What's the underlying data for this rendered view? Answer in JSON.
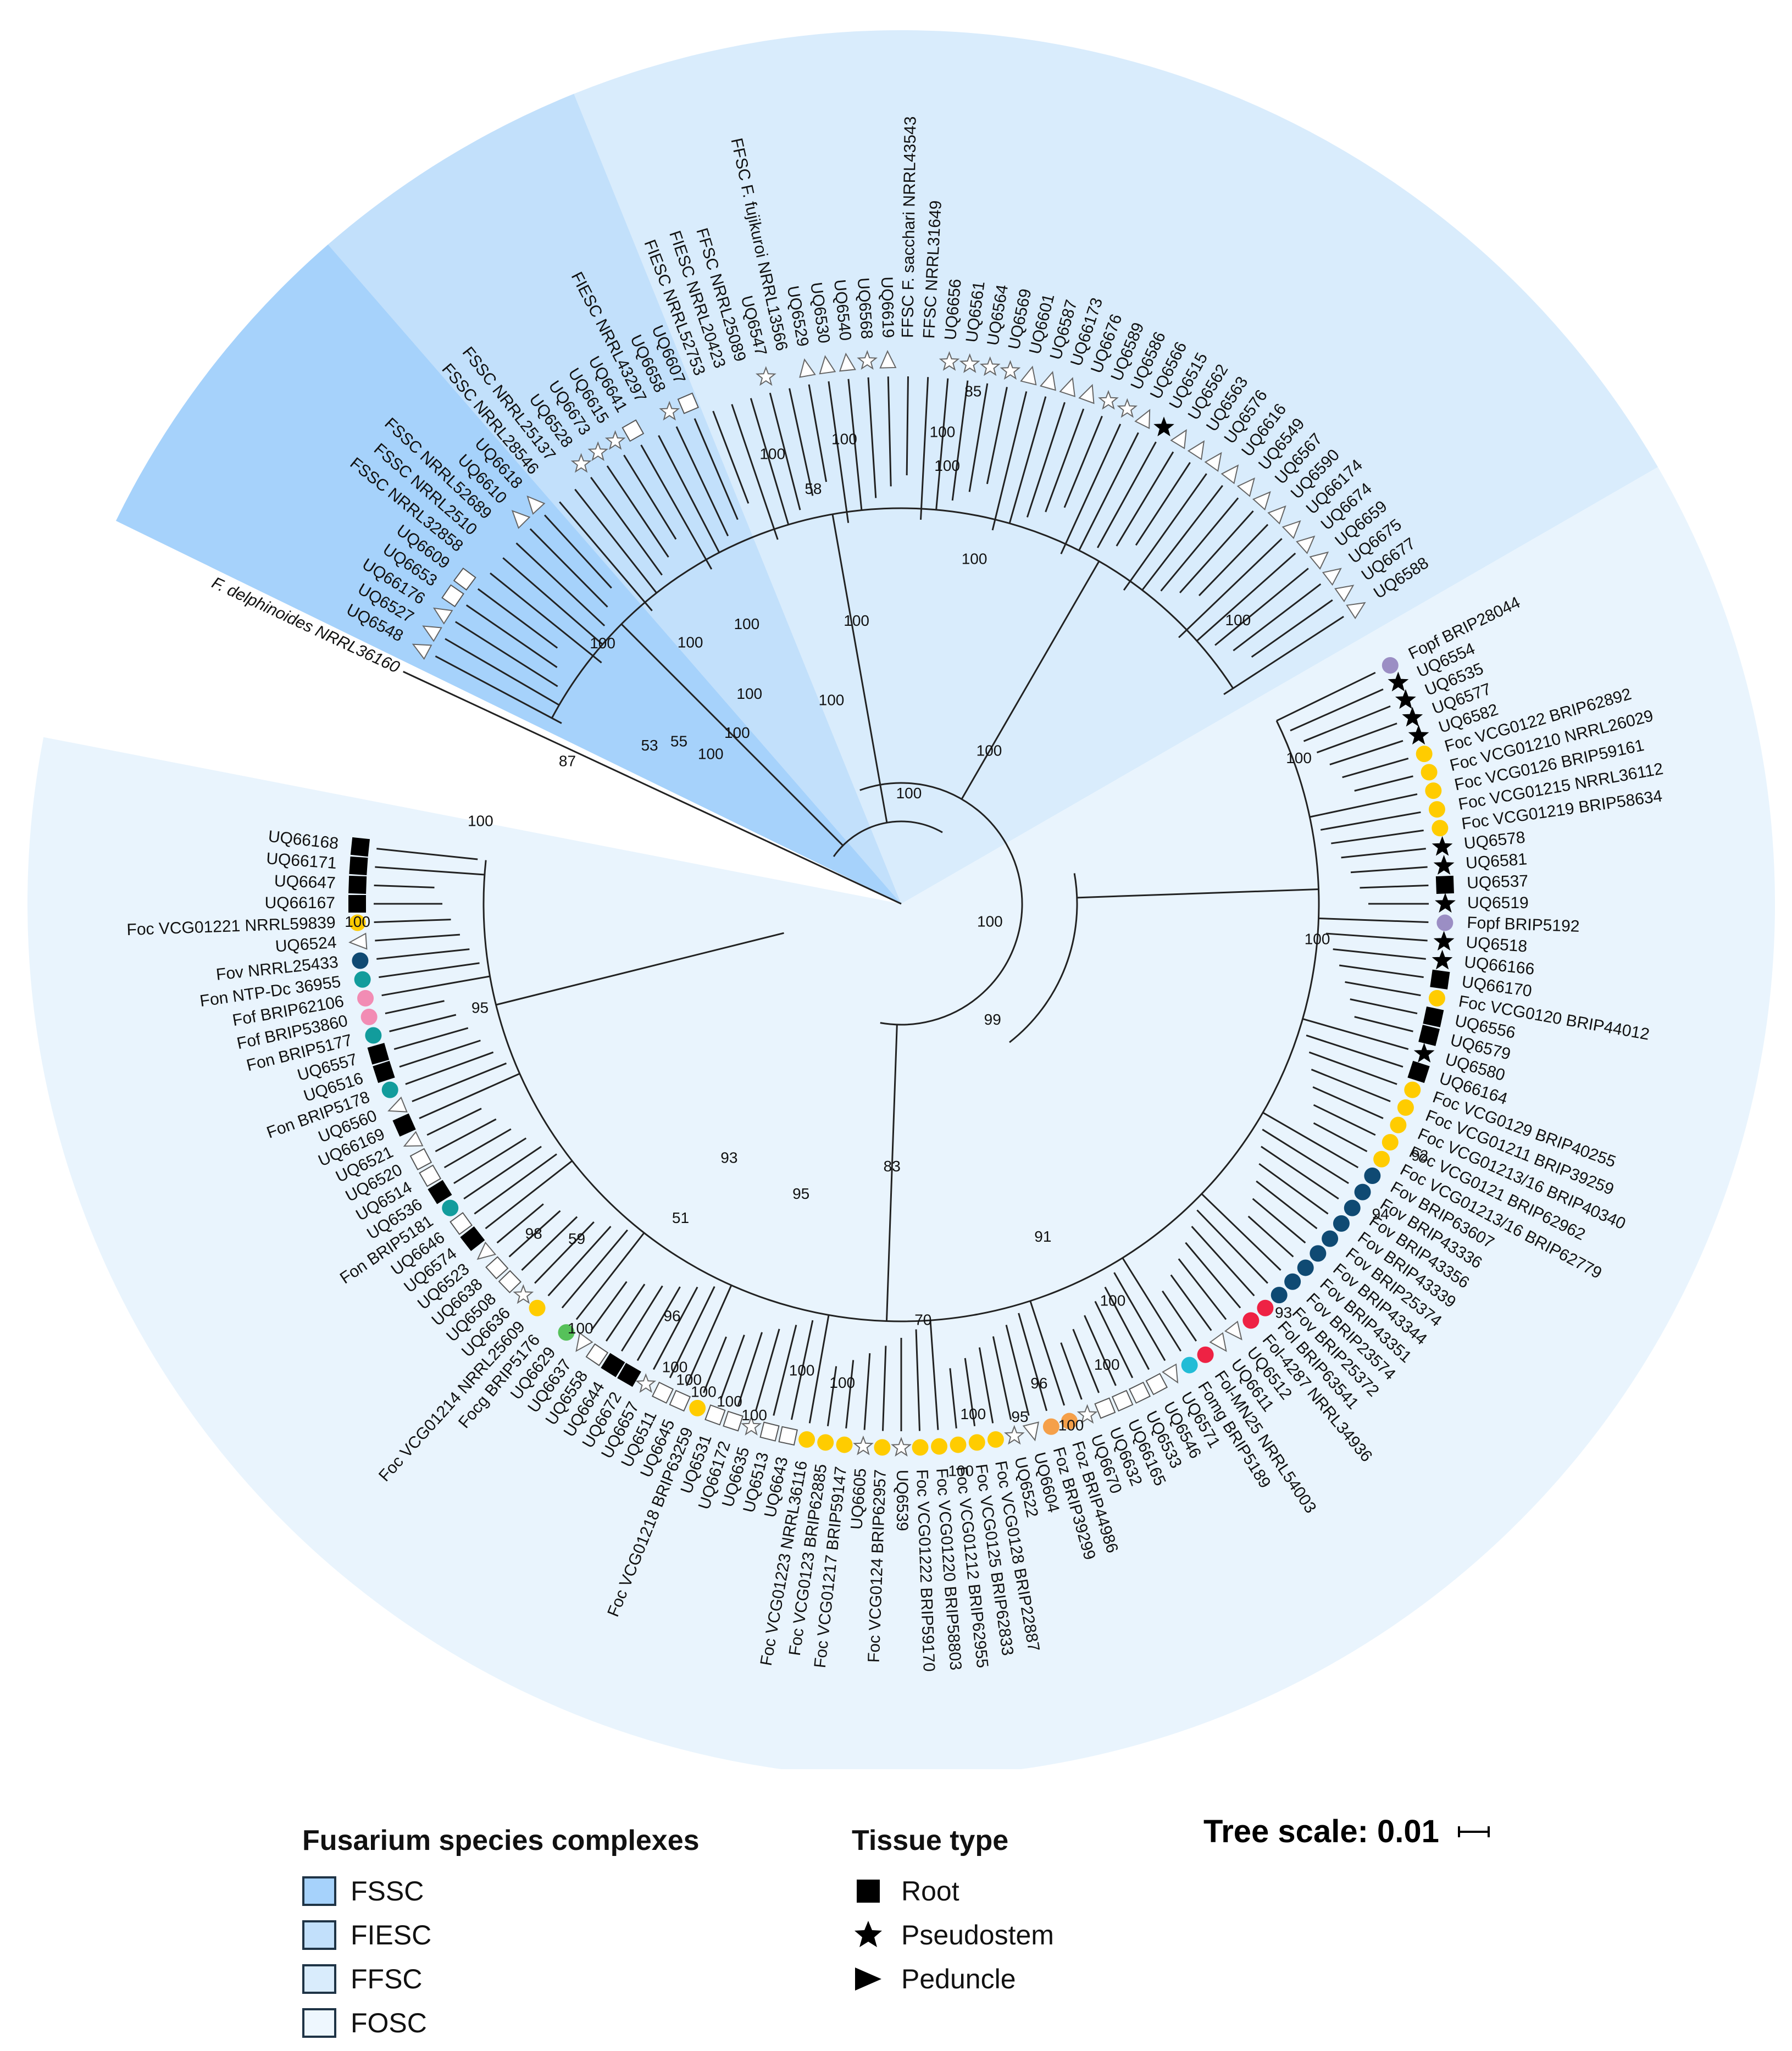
{
  "colors": {
    "FSSC": "#a6d2fb",
    "FIESC": "#c2e0fb",
    "FFSC": "#d9ecfc",
    "FOSC": "#e9f4fd",
    "Foc": "#ffcc00",
    "Fov": "#0f4a73",
    "Fon": "#129c9c",
    "Fof": "#f28cb4",
    "Fopf": "#9b8ec4",
    "Fol": "#ee2244",
    "Foz": "#f5a04a",
    "Focg": "#56c15a",
    "Fomg": "#22bcd6"
  },
  "chart_data": {
    "type": "circular phylogenetic tree",
    "outgroup": "F. delphinoides NRRL36160",
    "tips": [
      {
        "name": "UQ6548",
        "mark": "triangle"
      },
      {
        "name": "UQ6527",
        "mark": "triangle"
      },
      {
        "name": "UQ66176",
        "mark": "triangle"
      },
      {
        "name": "UQ6653",
        "mark": "square"
      },
      {
        "name": "UQ6609",
        "mark": "square"
      },
      {
        "name": "FSSC NRRL32858",
        "mark": ""
      },
      {
        "name": "FSSC NRRL2510",
        "mark": ""
      },
      {
        "name": "FSSC NRRL52689",
        "mark": ""
      },
      {
        "name": "UQ6610",
        "mark": "triangle"
      },
      {
        "name": "UQ6618",
        "mark": "triangle"
      },
      {
        "name": "FSSC NRRL28546",
        "mark": ""
      },
      {
        "name": "FSSC NRRL25137",
        "mark": ""
      },
      {
        "name": "UQ6528",
        "mark": "star"
      },
      {
        "name": "UQ6673",
        "mark": "star"
      },
      {
        "name": "UQ6615",
        "mark": "star"
      },
      {
        "name": "UQ6641",
        "mark": "square"
      },
      {
        "name": "FIESC NRRL43297",
        "mark": ""
      },
      {
        "name": "UQ6658",
        "mark": "star"
      },
      {
        "name": "UQ6607",
        "mark": "square"
      },
      {
        "name": "FIESC NRRL52753",
        "mark": ""
      },
      {
        "name": "FIESC NRRL20423",
        "mark": ""
      },
      {
        "name": "FFSC NRRL25089",
        "mark": ""
      },
      {
        "name": "UQ6547",
        "mark": "star"
      },
      {
        "name": "FFSC F. fujikuroi NRRL13566",
        "mark": ""
      },
      {
        "name": "UQ6529",
        "mark": "triangle"
      },
      {
        "name": "UQ6530",
        "mark": "triangle"
      },
      {
        "name": "UQ6540",
        "mark": "triangle"
      },
      {
        "name": "UQ6568",
        "mark": "star"
      },
      {
        "name": "UQ6619",
        "mark": "triangle"
      },
      {
        "name": "FFSC F. sacchari NRRL43543",
        "mark": ""
      },
      {
        "name": "FFSC NRRL31649",
        "mark": ""
      },
      {
        "name": "UQ6656",
        "mark": "star"
      },
      {
        "name": "UQ6561",
        "mark": "star"
      },
      {
        "name": "UQ6564",
        "mark": "star"
      },
      {
        "name": "UQ6569",
        "mark": "star"
      },
      {
        "name": "UQ6601",
        "mark": "triangle"
      },
      {
        "name": "UQ6587",
        "mark": "triangle"
      },
      {
        "name": "UQ66173",
        "mark": "triangle"
      },
      {
        "name": "UQ6676",
        "mark": "triangle"
      },
      {
        "name": "UQ6589",
        "mark": "star"
      },
      {
        "name": "UQ6586",
        "mark": "star"
      },
      {
        "name": "UQ6566",
        "mark": "triangle"
      },
      {
        "name": "UQ6515",
        "mark": "star_filled"
      },
      {
        "name": "UQ6562",
        "mark": "triangle"
      },
      {
        "name": "UQ6563",
        "mark": "triangle"
      },
      {
        "name": "UQ6576",
        "mark": "triangle"
      },
      {
        "name": "UQ6616",
        "mark": "triangle"
      },
      {
        "name": "UQ6549",
        "mark": "triangle"
      },
      {
        "name": "UQ6567",
        "mark": "triangle"
      },
      {
        "name": "UQ6590",
        "mark": "triangle"
      },
      {
        "name": "UQ66174",
        "mark": "triangle"
      },
      {
        "name": "UQ6674",
        "mark": "triangle"
      },
      {
        "name": "UQ6659",
        "mark": "triangle"
      },
      {
        "name": "UQ6675",
        "mark": "triangle"
      },
      {
        "name": "UQ6677",
        "mark": "triangle"
      },
      {
        "name": "UQ6588",
        "mark": "triangle"
      },
      {
        "name": "Fopf BRIP28044",
        "mark": "Fopf"
      },
      {
        "name": "UQ6554",
        "mark": "star_filled"
      },
      {
        "name": "UQ6535",
        "mark": "star_filled"
      },
      {
        "name": "UQ6577",
        "mark": "star_filled"
      },
      {
        "name": "UQ6582",
        "mark": "star_filled"
      },
      {
        "name": "Foc VCG0122 BRIP62892",
        "mark": "Foc"
      },
      {
        "name": "Foc VCG01210 NRRL26029",
        "mark": "Foc"
      },
      {
        "name": "Foc VCG0126 BRIP59161",
        "mark": "Foc"
      },
      {
        "name": "Foc VCG01215 NRRL36112",
        "mark": "Foc"
      },
      {
        "name": "Foc VCG01219 BRIP58634",
        "mark": "Foc"
      },
      {
        "name": "UQ6578",
        "mark": "star_filled"
      },
      {
        "name": "UQ6581",
        "mark": "star_filled"
      },
      {
        "name": "UQ6537",
        "mark": "square_filled"
      },
      {
        "name": "UQ6519",
        "mark": "star_filled"
      },
      {
        "name": "Fopf BRIP5192",
        "mark": "Fopf"
      },
      {
        "name": "UQ6518",
        "mark": "star_filled"
      },
      {
        "name": "UQ66166",
        "mark": "star_filled"
      },
      {
        "name": "UQ66170",
        "mark": "square_filled"
      },
      {
        "name": "Foc VCG0120 BRIP44012",
        "mark": "Foc"
      },
      {
        "name": "UQ6556",
        "mark": "square_filled"
      },
      {
        "name": "UQ6579",
        "mark": "square_filled"
      },
      {
        "name": "UQ6580",
        "mark": "star_filled"
      },
      {
        "name": "UQ66164",
        "mark": "square_filled"
      },
      {
        "name": "Foc VCG0129 BRIP40255",
        "mark": "Foc"
      },
      {
        "name": "Foc VCG01211 BRIP39259",
        "mark": "Foc"
      },
      {
        "name": "Foc VCG01213/16 BRIP40340",
        "mark": "Foc"
      },
      {
        "name": "Foc VCG0121 BRIP62962",
        "mark": "Foc"
      },
      {
        "name": "Foc VCG01213/16 BRIP62779",
        "mark": "Foc"
      },
      {
        "name": "Fov BRIP63607",
        "mark": "Fov"
      },
      {
        "name": "Fov BRIP43336",
        "mark": "Fov"
      },
      {
        "name": "Fov BRIP43356",
        "mark": "Fov"
      },
      {
        "name": "Fov BRIP43339",
        "mark": "Fov"
      },
      {
        "name": "Fov BRIP25374",
        "mark": "Fov"
      },
      {
        "name": "Fov BRIP43344",
        "mark": "Fov"
      },
      {
        "name": "Fov BRIP43351",
        "mark": "Fov"
      },
      {
        "name": "Fov BRIP23574",
        "mark": "Fov"
      },
      {
        "name": "Fov BRIP25372",
        "mark": "Fov"
      },
      {
        "name": "Fol BRIP63541",
        "mark": "Fol"
      },
      {
        "name": "Fol-4287 NRRL34936",
        "mark": "Fol"
      },
      {
        "name": "UQ6512",
        "mark": "triangle"
      },
      {
        "name": "UQ6611",
        "mark": "triangle"
      },
      {
        "name": "Fol-MN25 NRRL54003",
        "mark": "Fol"
      },
      {
        "name": "Fomg BRIP5189",
        "mark": "Fomg"
      },
      {
        "name": "UQ6571",
        "mark": "triangle"
      },
      {
        "name": "UQ6546",
        "mark": "square"
      },
      {
        "name": "UQ6533",
        "mark": "square"
      },
      {
        "name": "UQ66165",
        "mark": "square"
      },
      {
        "name": "UQ6632",
        "mark": "square"
      },
      {
        "name": "UQ6670",
        "mark": "star"
      },
      {
        "name": "Foz BRIP44986",
        "mark": "Foz"
      },
      {
        "name": "Foz BRIP39299",
        "mark": "Foz"
      },
      {
        "name": "UQ6604",
        "mark": "triangle"
      },
      {
        "name": "UQ6522",
        "mark": "star"
      },
      {
        "name": "Foc VCG0128 BRIP22887",
        "mark": "Foc"
      },
      {
        "name": "Foc VCG0125 BRIP62833",
        "mark": "Foc"
      },
      {
        "name": "Foc VCG01212 BRIP62955",
        "mark": "Foc"
      },
      {
        "name": "Foc VCG01220 BRIP58803",
        "mark": "Foc"
      },
      {
        "name": "Foc VCG01222 BRIP59170",
        "mark": "Foc"
      },
      {
        "name": "UQ6539",
        "mark": "star"
      },
      {
        "name": "Foc VCG0124 BRIP62957",
        "mark": "Foc"
      },
      {
        "name": "UQ6605",
        "mark": "star"
      },
      {
        "name": "Foc VCG01217 BRIP59147",
        "mark": "Foc"
      },
      {
        "name": "Foc VCG0123 BRIP62885",
        "mark": "Foc"
      },
      {
        "name": "Foc VCG01223 NRRL36116",
        "mark": "Foc"
      },
      {
        "name": "UQ6643",
        "mark": "square"
      },
      {
        "name": "UQ6513",
        "mark": "square"
      },
      {
        "name": "UQ6635",
        "mark": "star"
      },
      {
        "name": "UQ66172",
        "mark": "square"
      },
      {
        "name": "UQ6531",
        "mark": "square"
      },
      {
        "name": "Foc VCG01218 BRIP63259",
        "mark": "Foc"
      },
      {
        "name": "UQ6645",
        "mark": "square"
      },
      {
        "name": "UQ6511",
        "mark": "square"
      },
      {
        "name": "UQ6657",
        "mark": "star"
      },
      {
        "name": "UQ6672",
        "mark": "square_filled"
      },
      {
        "name": "UQ6644",
        "mark": "square_filled"
      },
      {
        "name": "UQ6558",
        "mark": "square"
      },
      {
        "name": "UQ6637",
        "mark": "triangle"
      },
      {
        "name": "UQ6629",
        "mark": "Focg"
      },
      {
        "name": "Focg BRIP5176",
        "mark": ""
      },
      {
        "name": "Foc VCG01214 NRRL25609",
        "mark": "Foc"
      },
      {
        "name": "UQ6636",
        "mark": "star"
      },
      {
        "name": "UQ6508",
        "mark": "square"
      },
      {
        "name": "UQ6638",
        "mark": "square"
      },
      {
        "name": "UQ6523",
        "mark": "triangle"
      },
      {
        "name": "UQ6574",
        "mark": "square_filled"
      },
      {
        "name": "UQ6646",
        "mark": "square"
      },
      {
        "name": "Fon BRIP5181",
        "mark": "Fon"
      },
      {
        "name": "UQ6536",
        "mark": "square_filled"
      },
      {
        "name": "UQ6514",
        "mark": "square"
      },
      {
        "name": "UQ6520",
        "mark": "square"
      },
      {
        "name": "UQ6521",
        "mark": "triangle"
      },
      {
        "name": "UQ66169",
        "mark": "square_filled"
      },
      {
        "name": "UQ6560",
        "mark": "triangle"
      },
      {
        "name": "Fon BRIP5178",
        "mark": "Fon"
      },
      {
        "name": "UQ6516",
        "mark": "square_filled"
      },
      {
        "name": "UQ6557",
        "mark": "square_filled"
      },
      {
        "name": "Fon BRIP5177",
        "mark": "Fon"
      },
      {
        "name": "Fof BRIP53860",
        "mark": "Fof"
      },
      {
        "name": "Fof BRIP62106",
        "mark": "Fof"
      },
      {
        "name": "Fon NTP-Dc 36955",
        "mark": "Fon"
      },
      {
        "name": "Fov NRRL25433",
        "mark": "Fov"
      },
      {
        "name": "UQ6524",
        "mark": "triangle"
      },
      {
        "name": "Foc VCG01221 NRRL59839",
        "mark": "Foc"
      },
      {
        "name": "UQ66167",
        "mark": "square_filled"
      },
      {
        "name": "UQ6647",
        "mark": "square_filled"
      },
      {
        "name": "UQ66171",
        "mark": "square_filled"
      },
      {
        "name": "UQ66168",
        "mark": "square_filled"
      }
    ],
    "bootstrap_labels": [
      {
        "value": "100",
        "a": 191,
        "r": 780
      },
      {
        "value": "87",
        "a": 203,
        "r": 660
      },
      {
        "value": "53",
        "a": 212,
        "r": 540
      },
      {
        "value": "55",
        "a": 216,
        "r": 500
      },
      {
        "value": "100",
        "a": 218,
        "r": 440
      },
      {
        "value": "100",
        "a": 226,
        "r": 430
      },
      {
        "value": "100",
        "a": 234,
        "r": 470
      },
      {
        "value": "100",
        "a": 231,
        "r": 610
      },
      {
        "value": "100",
        "a": 241,
        "r": 580
      },
      {
        "value": "100",
        "a": 221,
        "r": 720
      },
      {
        "value": "58",
        "a": 258,
        "r": 770
      },
      {
        "value": "100",
        "a": 254,
        "r": 850
      },
      {
        "value": "100",
        "a": 263,
        "r": 850
      },
      {
        "value": "100",
        "a": 261,
        "r": 520
      },
      {
        "value": "100",
        "a": 251,
        "r": 390
      },
      {
        "value": "100",
        "a": 275,
        "r": 860
      },
      {
        "value": "100",
        "a": 276,
        "r": 800
      },
      {
        "value": "85",
        "a": 278,
        "r": 940
      },
      {
        "value": "100",
        "a": 320,
        "r": 800
      },
      {
        "value": "100",
        "a": 282,
        "r": 640
      },
      {
        "value": "100",
        "a": 274,
        "r": 200
      },
      {
        "value": "100",
        "a": 300,
        "r": 320
      },
      {
        "value": "100",
        "a": 340,
        "r": 770
      },
      {
        "value": "100",
        "a": 12,
        "r": 165
      },
      {
        "value": "100",
        "a": 5,
        "r": 760
      },
      {
        "value": "99",
        "a": 52,
        "r": 270
      },
      {
        "value": "92",
        "a": 26,
        "r": 1050
      },
      {
        "value": "94",
        "a": 33,
        "r": 1040
      },
      {
        "value": "93",
        "a": 47,
        "r": 1020
      },
      {
        "value": "91",
        "a": 67,
        "r": 660
      },
      {
        "value": "100",
        "a": 62,
        "r": 820
      },
      {
        "value": "100",
        "a": 66,
        "r": 920
      },
      {
        "value": "96",
        "a": 74,
        "r": 910
      },
      {
        "value": "100",
        "a": 72,
        "r": 1000
      },
      {
        "value": "95",
        "a": 77,
        "r": 960
      },
      {
        "value": "100",
        "a": 82,
        "r": 940
      },
      {
        "value": "100",
        "a": 84,
        "r": 1040
      },
      {
        "value": "70",
        "a": 87,
        "r": 760
      },
      {
        "value": "83",
        "a": 92,
        "r": 480
      },
      {
        "value": "100",
        "a": 97,
        "r": 880
      },
      {
        "value": "100",
        "a": 102,
        "r": 870
      },
      {
        "value": "95",
        "a": 109,
        "r": 560
      },
      {
        "value": "100",
        "a": 106,
        "r": 970
      },
      {
        "value": "100",
        "a": 109,
        "r": 960
      },
      {
        "value": "100",
        "a": 112,
        "r": 960
      },
      {
        "value": "100",
        "a": 114,
        "r": 950
      },
      {
        "value": "100",
        "a": 116,
        "r": 940
      },
      {
        "value": "96",
        "a": 119,
        "r": 860
      },
      {
        "value": "93",
        "a": 124,
        "r": 560
      },
      {
        "value": "51",
        "a": 125,
        "r": 700
      },
      {
        "value": "100",
        "a": 127,
        "r": 970
      },
      {
        "value": "59",
        "a": 134,
        "r": 850
      },
      {
        "value": "98",
        "a": 138,
        "r": 900
      },
      {
        "value": "95",
        "a": 166,
        "r": 790
      },
      {
        "value": "100",
        "a": 178,
        "r": 990
      }
    ]
  },
  "legend": {
    "complex_title": "Fusarium species complexes",
    "complexes": [
      {
        "label": "FSSC",
        "color": "#a6d2fb"
      },
      {
        "label": "FIESC",
        "color": "#c2e0fb"
      },
      {
        "label": "FFSC",
        "color": "#d9ecfc"
      },
      {
        "label": "FOSC",
        "color": "#eef7fe"
      }
    ],
    "tissue_title": "Tissue type",
    "tissues": [
      {
        "label": "Root",
        "icon": "square-icon"
      },
      {
        "label": "Pseudostem",
        "icon": "star-icon"
      },
      {
        "label": "Peduncle",
        "icon": "triangle-icon"
      }
    ]
  },
  "scale": {
    "label": "Tree scale: 0.01"
  }
}
